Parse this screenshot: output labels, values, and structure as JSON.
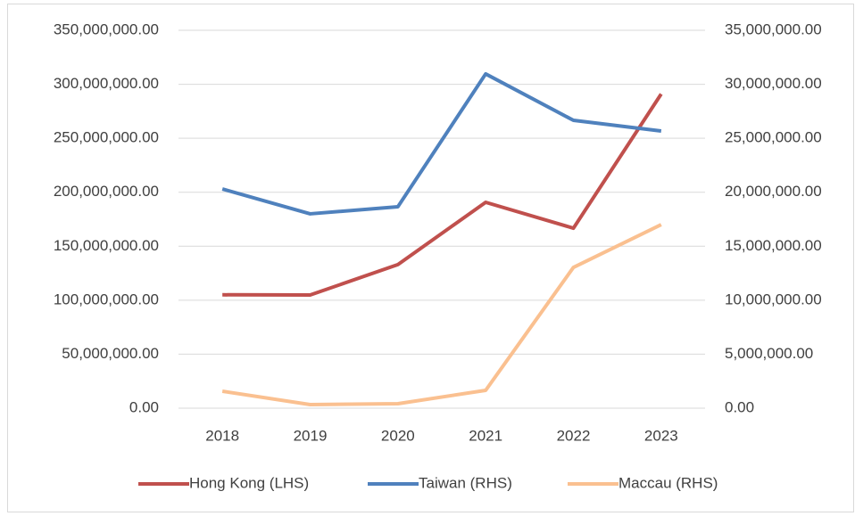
{
  "chart_data": {
    "type": "line",
    "categories": [
      "2018",
      "2019",
      "2020",
      "2021",
      "2022",
      "2023"
    ],
    "series": [
      {
        "name": "Hong Kong (LHS)",
        "color": "#c0504d",
        "values": [
          105000000,
          104800000,
          133000000,
          190700000,
          166700000,
          291000000
        ]
      },
      {
        "name": "Taiwan (RHS)",
        "color": "#4f81bd",
        "axis": "y2",
        "values": [
          20300000,
          18000000,
          18660000,
          30960000,
          26660000,
          25670000
        ]
      },
      {
        "name": "Maccau (RHS)",
        "color": "#fac090",
        "axis": "y2",
        "values": [
          1570000,
          330000,
          410000,
          1650000,
          13040000,
          17000000
        ]
      }
    ],
    "ylim": [
      0,
      350000000
    ],
    "yticks": [
      {
        "value": 0,
        "label": "0.00"
      },
      {
        "value": 50000000,
        "label": "50,000,000.00"
      },
      {
        "value": 100000000,
        "label": "100,000,000.00"
      },
      {
        "value": 150000000,
        "label": "150,000,000.00"
      },
      {
        "value": 200000000,
        "label": "200,000,000.00"
      },
      {
        "value": 250000000,
        "label": "250,000,000.00"
      },
      {
        "value": 300000000,
        "label": "300,000,000.00"
      },
      {
        "value": 350000000,
        "label": "350,000,000.00"
      }
    ],
    "y2lim": [
      0,
      35000000
    ],
    "y2ticks": [
      {
        "value": 0,
        "label": "0.00"
      },
      {
        "value": 5000000,
        "label": "5,000,000.00"
      },
      {
        "value": 10000000,
        "label": "10,000,000.00"
      },
      {
        "value": 15000000,
        "label": "15,000,000.00"
      },
      {
        "value": 20000000,
        "label": "20,000,000.00"
      },
      {
        "value": 25000000,
        "label": "25,000,000.00"
      },
      {
        "value": 30000000,
        "label": "30,000,000.00"
      },
      {
        "value": 35000000,
        "label": "35,000,000.00"
      }
    ],
    "grid": true,
    "legend": "bottom"
  }
}
